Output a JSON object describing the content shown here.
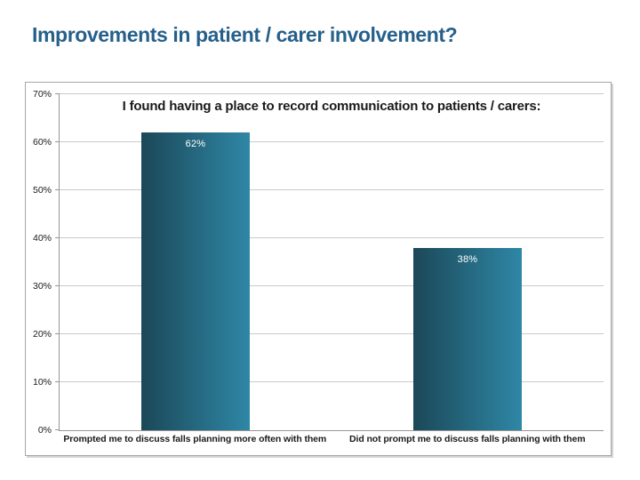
{
  "slide": {
    "title": "Improvements in patient / carer involvement?"
  },
  "chart_data": {
    "type": "bar",
    "title": "I found having a place to record communication to patients / carers:",
    "categories": [
      "Prompted me to discuss falls planning more often with them",
      "Did not prompt me to discuss falls planning with them"
    ],
    "values": [
      62,
      38
    ],
    "bar_labels": [
      "62%",
      "38%"
    ],
    "xlabel": "",
    "ylabel": "",
    "ylim": [
      0,
      70
    ],
    "ytick_step": 10,
    "ytick_labels": [
      "0%",
      "10%",
      "20%",
      "30%",
      "40%",
      "50%",
      "60%",
      "70%"
    ],
    "grid": true,
    "legend": false,
    "colors": {
      "slide_title": "#26608a",
      "bar_gradient_start": "#1b4858",
      "bar_gradient_end": "#2f87a6",
      "bar_label_text": "#ffffff",
      "gridline": "#c9c9c9",
      "axis_line": "#969696"
    }
  }
}
